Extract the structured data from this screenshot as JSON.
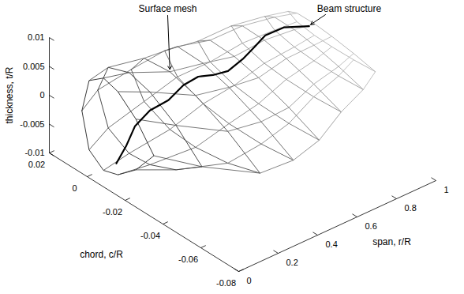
{
  "chart_data": {
    "type": "surface",
    "x_label": "chord, c/R",
    "y_label": "span, r/R",
    "z_label": "thickness, t/R",
    "xlim": [
      -0.08,
      0.02
    ],
    "xticks": [
      0.02,
      0,
      -0.02,
      -0.04,
      -0.06,
      -0.08
    ],
    "ylim": [
      0,
      1
    ],
    "yticks": [
      0,
      0.2,
      0.4,
      0.6,
      0.8,
      1
    ],
    "zlim": [
      -0.01,
      0.01
    ],
    "zticks": [
      -0.01,
      -0.005,
      0,
      0.005,
      0.01
    ],
    "series": [
      {
        "name": "Surface mesh",
        "type": "mesh",
        "color": "#555555",
        "sections": [
          {
            "span": 0.05,
            "chord": [
              0.008,
              0.0042,
              -0.0034,
              -0.011,
              -0.0205,
              -0.03,
              -0.0205,
              -0.011,
              -0.0034,
              0.0042
            ],
            "thickness": [
              -0.001,
              0.005,
              0.007,
              0.0062,
              0.0034,
              -0.001,
              -0.0054,
              -0.0082,
              -0.009,
              -0.007
            ]
          },
          {
            "span": 0.15,
            "chord": [
              0.01,
              0.0045,
              -0.0065,
              -0.0175,
              -0.0313,
              -0.045,
              -0.0313,
              -0.0175,
              -0.0065,
              0.0045
            ],
            "thickness": [
              0.0006,
              0.00565,
              0.007,
              0.0059,
              0.00295,
              -0.0014,
              -0.00475,
              -0.0067,
              -0.007,
              -0.00485
            ]
          },
          {
            "span": 0.3,
            "chord": [
              0.008,
              0.0012,
              -0.0124,
              -0.026,
              -0.043,
              -0.06,
              -0.043,
              -0.026,
              -0.0124,
              0.0012
            ],
            "thickness": [
              0.0022,
              0.00555,
              0.006,
              0.0047,
              0.00195,
              -0.0018,
              -0.00355,
              -0.0043,
              -0.004,
              -0.00195
            ]
          },
          {
            "span": 0.45,
            "chord": [
              0.006,
              -0.0008,
              -0.0144,
              -0.028,
              -0.045,
              -0.062,
              -0.045,
              -0.028,
              -0.0144,
              -0.0008
            ],
            "thickness": [
              0.0035,
              0.00563,
              0.0055,
              0.00415,
              0.00168,
              -0.0015,
              -0.00218,
              -0.00215,
              -0.0015,
              0.00038
            ]
          },
          {
            "span": 0.6,
            "chord": [
              0.004,
              -0.0024,
              -0.0152,
              -0.028,
              -0.044,
              -0.06,
              -0.044,
              -0.028,
              -0.0152,
              -0.0024
            ],
            "thickness": [
              0.0032,
              0.00468,
              0.0045,
              0.00345,
              0.00158,
              -0.0008,
              -0.00118,
              -0.00105,
              -0.0005,
              0.00093
            ]
          },
          {
            "span": 0.75,
            "chord": [
              0.002,
              -0.0038,
              -0.0154,
              -0.027,
              -0.0415,
              -0.056,
              -0.0415,
              -0.027,
              -0.0154,
              -0.0038
            ],
            "thickness": [
              0.0039,
              0.0051,
              0.005,
              0.0042,
              0.00275,
              0.0009,
              0.00055,
              0.0006,
              0.001,
              0.0021
            ]
          },
          {
            "span": 0.9,
            "chord": [
              0,
              -0.0052,
              -0.0156,
              -0.026,
              -0.039,
              -0.052,
              -0.039,
              -0.026,
              -0.0156,
              -0.0052
            ],
            "thickness": [
              0.0036,
              0.00453,
              0.0045,
              0.00395,
              0.00293,
              0.0016,
              0.00128,
              0.00125,
              0.0015,
              0.00228
            ]
          },
          {
            "span": 1,
            "chord": [
              -0.002,
              -0.0066,
              -0.0158,
              -0.025,
              -0.0365,
              -0.048,
              -0.0365,
              -0.025,
              -0.0158,
              -0.0066
            ],
            "thickness": [
              0.0033,
              0.00395,
              0.004,
              0.0037,
              0.0031,
              0.0023,
              0.002,
              0.0019,
              0.002,
              0.00245
            ]
          }
        ]
      },
      {
        "name": "Beam structure",
        "type": "line",
        "color": "#000000",
        "span": [
          0.023,
          0.072,
          0.117,
          0.193,
          0.287,
          0.363,
          0.438,
          0.513,
          0.589,
          0.664,
          0.721,
          0.778,
          0.872,
          1
        ],
        "chord": [
          -0.013,
          -0.013,
          -0.013,
          -0.013,
          -0.013,
          -0.013,
          -0.013,
          -0.013,
          -0.013,
          -0.013,
          -0.013,
          -0.013,
          -0.013,
          -0.013
        ],
        "thickness": [
          -0.0054,
          -0.0032,
          -0.00045,
          0.0011,
          0.0014,
          0.0028,
          0.0031,
          0.0022,
          0.0017,
          0.0026,
          0.0037,
          0.0049,
          0.0048,
          0.003
        ]
      }
    ]
  }
}
